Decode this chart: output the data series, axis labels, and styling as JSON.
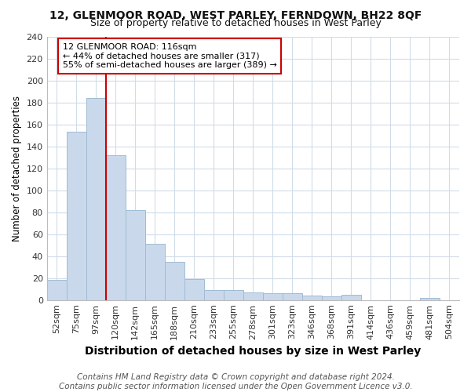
{
  "title": "12, GLENMOOR ROAD, WEST PARLEY, FERNDOWN, BH22 8QF",
  "subtitle": "Size of property relative to detached houses in West Parley",
  "xlabel": "Distribution of detached houses by size in West Parley",
  "ylabel": "Number of detached properties",
  "categories": [
    "52sqm",
    "75sqm",
    "97sqm",
    "120sqm",
    "142sqm",
    "165sqm",
    "188sqm",
    "210sqm",
    "233sqm",
    "255sqm",
    "278sqm",
    "301sqm",
    "323sqm",
    "346sqm",
    "368sqm",
    "391sqm",
    "414sqm",
    "436sqm",
    "459sqm",
    "481sqm",
    "504sqm"
  ],
  "values": [
    18,
    153,
    184,
    132,
    82,
    51,
    35,
    19,
    9,
    9,
    7,
    6,
    6,
    4,
    3,
    5,
    0,
    0,
    0,
    2,
    0
  ],
  "bar_color": "#c9d9eb",
  "bar_edge_color": "#9fbcd4",
  "vline_x": 2.5,
  "vline_color": "#cc0000",
  "annotation_text": "12 GLENMOOR ROAD: 116sqm\n← 44% of detached houses are smaller (317)\n55% of semi-detached houses are larger (389) →",
  "annotation_box_edgecolor": "#cc0000",
  "ylim": [
    0,
    240
  ],
  "yticks": [
    0,
    20,
    40,
    60,
    80,
    100,
    120,
    140,
    160,
    180,
    200,
    220,
    240
  ],
  "footer": "Contains HM Land Registry data © Crown copyright and database right 2024.\nContains public sector information licensed under the Open Government Licence v3.0.",
  "background_color": "#ffffff",
  "plot_background_color": "#ffffff",
  "title_fontsize": 10,
  "subtitle_fontsize": 9,
  "xlabel_fontsize": 10,
  "ylabel_fontsize": 8.5,
  "tick_fontsize": 8,
  "footer_fontsize": 7.5
}
